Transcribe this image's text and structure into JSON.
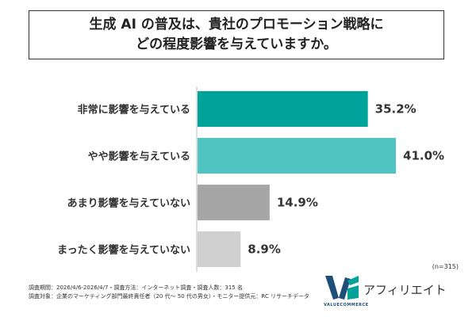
{
  "title": {
    "line1": "生成 AI の普及は、貴社のプロモーション戦略に",
    "line2": "どの程度影響を与えていますか。"
  },
  "chart_data": {
    "type": "bar",
    "orientation": "horizontal",
    "categories": [
      "非常に影響を与えている",
      "やや影響を与えている",
      "あまり影響を与えていない",
      "まったく影響を与えていない"
    ],
    "values": [
      35.2,
      41.0,
      14.9,
      8.9
    ],
    "value_labels": [
      "35.2%",
      "41.0%",
      "14.9%",
      "8.9%"
    ],
    "colors": [
      "#00a39a",
      "#4fc4c0",
      "#a6a6a6",
      "#d0d0d0"
    ],
    "xlim": [
      0,
      45
    ],
    "grid": false
  },
  "note": "(n=315)",
  "footer": {
    "line1": "調査期間：2026/4/6-2026/4/7・調査方法：インターネット調査・調査人数：315 名",
    "line2": "調査対象：企業のマーケティング部門最終責任者（20 代〜 50 代の男女）・モニター提供元：RC リサーチデータ"
  },
  "logo": {
    "sub": "VALUECOMMERCE",
    "text": "アフィリエイト",
    "colors": [
      "#1f4e79",
      "#00a39a"
    ]
  }
}
